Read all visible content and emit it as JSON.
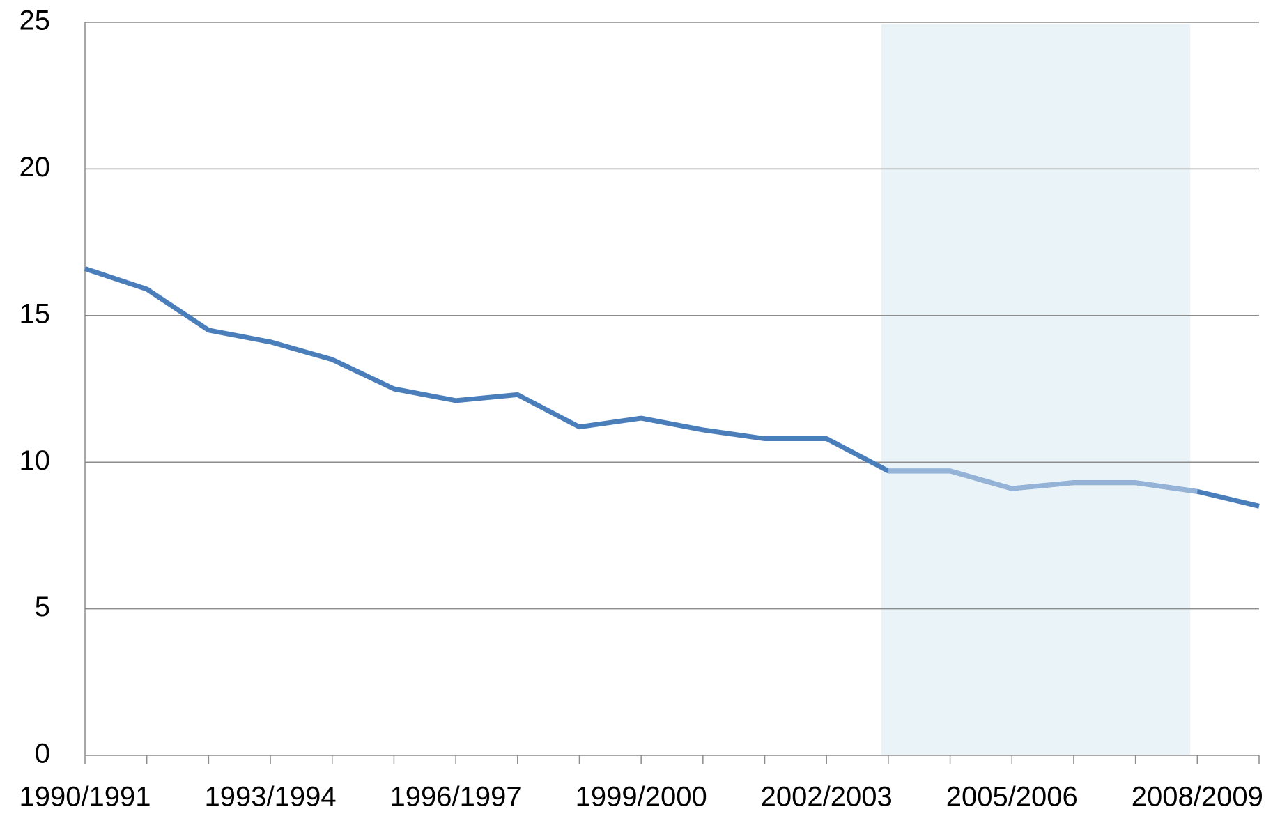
{
  "chart_data": {
    "type": "line",
    "categories": [
      "1990/1991",
      null,
      null,
      "1993/1994",
      null,
      null,
      "1996/1997",
      null,
      null,
      "1999/2000",
      null,
      null,
      "2002/2003",
      null,
      null,
      "2005/2006",
      null,
      null,
      "2008/2009",
      null
    ],
    "values": [
      16.6,
      15.9,
      14.5,
      14.1,
      13.5,
      12.5,
      12.1,
      12.3,
      11.2,
      11.5,
      11.1,
      10.8,
      10.8,
      9.7,
      9.7,
      9.1,
      9.3,
      9.3,
      9.0,
      8.5
    ],
    "color": "#4a7ebb",
    "highlight_range": [
      13,
      18
    ],
    "highlight_color": "#95b3d7",
    "highlight_band_color": "#eaf4f8",
    "ylim": [
      0,
      25
    ],
    "yticks": [
      0,
      5,
      10,
      15,
      20,
      25
    ],
    "grid": true
  }
}
